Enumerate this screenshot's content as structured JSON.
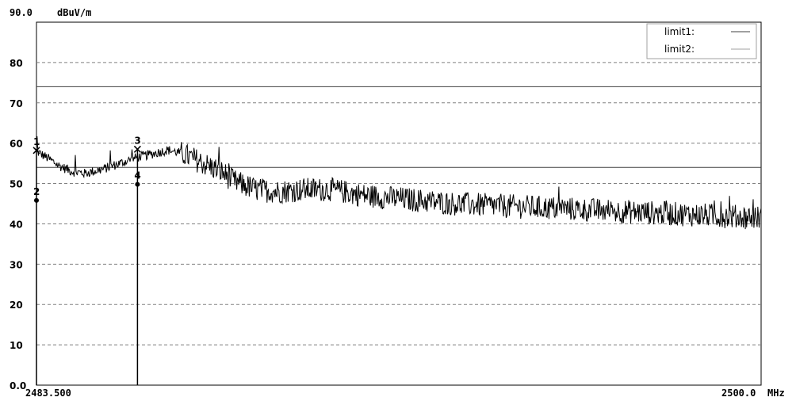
{
  "chart_data": {
    "type": "line",
    "ylabel": "dBuV/m",
    "y_top_label": "90.0",
    "ylim": [
      0,
      90
    ],
    "yticks": [
      {
        "v": 80,
        "t": "80"
      },
      {
        "v": 70,
        "t": "70"
      },
      {
        "v": 60,
        "t": "60"
      },
      {
        "v": 50,
        "t": "50"
      },
      {
        "v": 40,
        "t": "40"
      },
      {
        "v": 30,
        "t": "30"
      },
      {
        "v": 20,
        "t": "20"
      },
      {
        "v": 10,
        "t": "10"
      },
      {
        "v": 0,
        "t": "0.0"
      }
    ],
    "xlim": [
      2483.5,
      2500.0
    ],
    "x_start_label": "2483.500",
    "x_end_label": "2500.0",
    "x_unit": "MHz",
    "grid": "dashed horizontal",
    "legend": {
      "placement": "top-right",
      "entries": [
        {
          "name": "limit1:",
          "color": "#404040"
        },
        {
          "name": "limit2:",
          "color": "#a0a0a0"
        }
      ]
    },
    "limit_lines": [
      {
        "name": "limit1",
        "value": 74
      },
      {
        "name": "limit2",
        "value": 54
      }
    ],
    "trace_envelope": {
      "x": [
        2483.5,
        2483.8,
        2484.0,
        2484.3,
        2484.6,
        2485.0,
        2485.4,
        2485.8,
        2486.2,
        2486.5,
        2486.8,
        2487.1,
        2487.4,
        2487.7,
        2488.0,
        2488.5,
        2489.0,
        2489.6,
        2490.2,
        2491.0,
        2492.0,
        2493.0,
        2494.0,
        2495.0,
        2496.0,
        2497.0,
        2498.0,
        2499.0,
        2500.0
      ],
      "y": [
        58.0,
        56.0,
        54.5,
        53.0,
        52.5,
        53.5,
        55.0,
        56.5,
        57.5,
        58.3,
        57.5,
        56.0,
        54.5,
        53.0,
        50.5,
        48.5,
        48.0,
        48.5,
        48.5,
        47.0,
        46.0,
        45.0,
        44.5,
        44.0,
        43.5,
        43.0,
        42.5,
        42.0,
        41.5
      ]
    },
    "markers": [
      {
        "label": "1",
        "x": 2483.5,
        "y": 58.2,
        "symbol": "x"
      },
      {
        "label": "2",
        "x": 2483.5,
        "y": 45.8,
        "symbol": "dot"
      },
      {
        "label": "3",
        "x": 2485.8,
        "y": 58.5,
        "symbol": "x"
      },
      {
        "label": "4",
        "x": 2485.8,
        "y": 49.8,
        "symbol": "dot"
      }
    ]
  },
  "colors": {
    "trace": "#000000",
    "grid": "#808080",
    "frame": "#000000"
  }
}
